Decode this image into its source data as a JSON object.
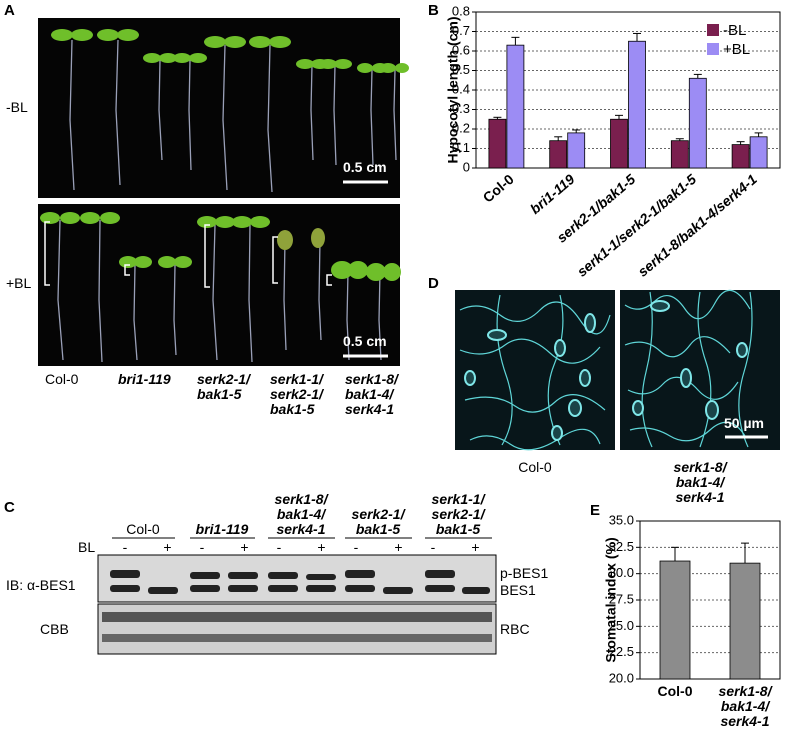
{
  "panels": {
    "A": {
      "label": "A",
      "conditions": [
        "-BL",
        "+BL"
      ],
      "scale_bars": [
        "0.5 cm",
        "0.5 cm"
      ],
      "genotypes": [
        "Col-0",
        "bri1-119",
        "serk2-1/\nbak1-5",
        "serk1-1/\nserk2-1/\nbak1-5",
        "serk1-8/\nbak1-4/\nserk4-1"
      ]
    },
    "C": {
      "label": "C",
      "genotypes": [
        "Col-0",
        "bri1-119",
        "serk1-8/\nbak1-4/\nserk4-1",
        "serk2-1/\nbak1-5",
        "serk1-1/\nserk2-1/\nbak1-5"
      ],
      "treatment": "BL",
      "lanes": [
        "-",
        "+",
        "-",
        "+",
        "-",
        "+",
        "-",
        "+",
        "-",
        "+"
      ],
      "antibody": "IB: α-BES1",
      "bands": [
        "p-BES1",
        "BES1"
      ],
      "loading": "CBB",
      "loading_band": "RBC"
    },
    "D": {
      "label": "D",
      "scale_bar": "50 µm",
      "genotypes": [
        "Col-0",
        "serk1-8/\nbak1-4/\nserk4-1"
      ]
    }
  },
  "chart_data": [
    {
      "type": "bar",
      "label": "B",
      "y_label": "Hypocotyl length (cm)",
      "categories": [
        "Col-0",
        "bri1-119",
        "serk2-1/bak1-5",
        "serk1-1/serk2-1/bak1-5",
        "serk1-8/bak1-4/serk4-1"
      ],
      "series": [
        {
          "name": "-BL",
          "color": "#7a1f4e",
          "values": [
            0.25,
            0.14,
            0.25,
            0.14,
            0.12
          ],
          "errors": [
            0.01,
            0.02,
            0.02,
            0.01,
            0.015
          ]
        },
        {
          "name": "+BL",
          "color": "#9c8cf4",
          "values": [
            0.63,
            0.18,
            0.65,
            0.46,
            0.16
          ],
          "errors": [
            0.04,
            0.015,
            0.04,
            0.02,
            0.02
          ]
        }
      ],
      "ylim": [
        0,
        0.8
      ],
      "yticks": [
        0,
        0.1,
        0.2,
        0.3,
        0.4,
        0.5,
        0.6,
        0.7,
        0.8
      ],
      "grid": true,
      "legend": "top-right"
    },
    {
      "type": "bar",
      "label": "E",
      "y_label": "Stomatal index (%)",
      "categories": [
        "Col-0",
        "serk1-8/\nbak1-4/\nserk4-1"
      ],
      "values": [
        31.2,
        31.0
      ],
      "errors": [
        1.3,
        1.9
      ],
      "color": "#8c8c8c",
      "ylim": [
        20,
        35
      ],
      "yticks": [
        {
          "value": 20,
          "label": "20.0"
        },
        {
          "value": 22.5,
          "label": "22.5"
        },
        {
          "value": 25,
          "label": "25.0"
        },
        {
          "value": 27.5,
          "label": "27.5"
        },
        {
          "value": 30,
          "label": "30.0"
        },
        {
          "value": 32.5,
          "label": "32.5"
        },
        {
          "value": 35,
          "label": "35.0"
        }
      ],
      "grid": true
    }
  ]
}
